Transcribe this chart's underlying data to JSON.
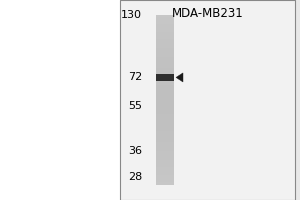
{
  "title": "MDA-MB231",
  "mw_markers": [
    130,
    72,
    55,
    36,
    28
  ],
  "arrow_color": "#1a1a1a",
  "title_fontsize": 8.5,
  "marker_fontsize": 8,
  "outer_bg": "#e8e8e8",
  "blot_bg": "#f2f2f2",
  "lane_gray": 0.78,
  "band_dark": 0.18,
  "mw_log_min": 3.258,
  "mw_log_max": 4.868
}
